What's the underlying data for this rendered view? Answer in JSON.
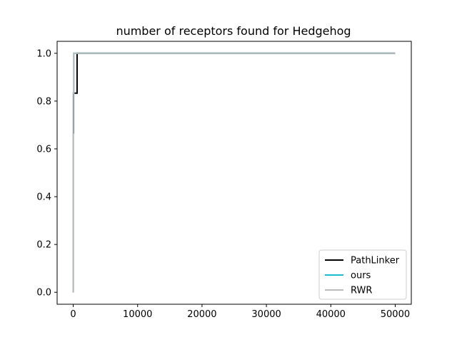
{
  "chart_data": {
    "type": "line",
    "title": "number of receptors found for Hedgehog",
    "xlabel": "",
    "ylabel": "",
    "xlim": [
      -2500,
      52500
    ],
    "ylim": [
      -0.05,
      1.05
    ],
    "xticks": [
      0,
      10000,
      20000,
      30000,
      40000,
      50000
    ],
    "yticks": [
      0.0,
      0.2,
      0.4,
      0.6,
      0.8,
      1.0
    ],
    "xtick_labels": [
      "0",
      "10000",
      "20000",
      "30000",
      "40000",
      "50000"
    ],
    "ytick_labels": [
      "0.0",
      "0.2",
      "0.4",
      "0.6",
      "0.8",
      "1.0"
    ],
    "grid": false,
    "legend_position": "lower-right",
    "series": [
      {
        "name": "PathLinker",
        "color": "#000000",
        "x": [
          0,
          0,
          50,
          50,
          150,
          150,
          600,
          600,
          50000
        ],
        "y": [
          0.0,
          0.667,
          0.667,
          0.833,
          0.833,
          0.833,
          0.833,
          1.0,
          1.0
        ]
      },
      {
        "name": "ours",
        "color": "#17becf",
        "x": [
          0,
          0,
          20,
          20,
          80,
          80,
          50000
        ],
        "y": [
          0.0,
          0.667,
          0.667,
          0.833,
          0.833,
          1.0,
          1.0
        ]
      },
      {
        "name": "RWR",
        "color": "#bbbbbb",
        "x": [
          0,
          0,
          30,
          30,
          100,
          100,
          50000
        ],
        "y": [
          0.0,
          0.833,
          0.833,
          0.833,
          0.833,
          1.0,
          1.0
        ]
      }
    ]
  }
}
